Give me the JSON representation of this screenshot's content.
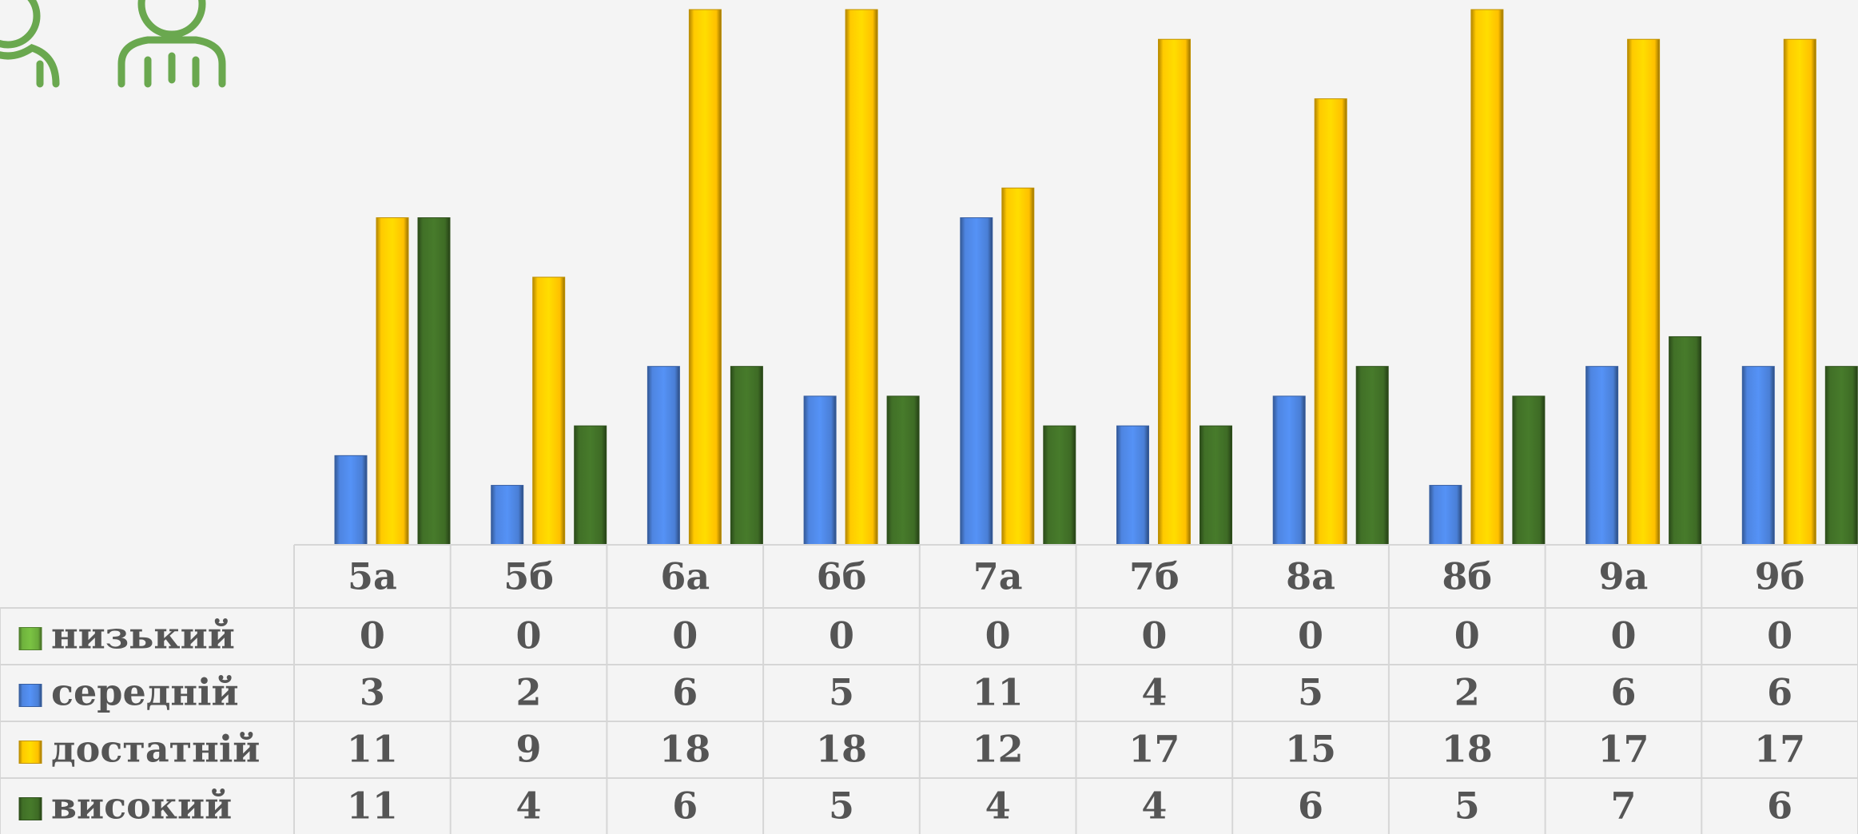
{
  "chart_data": {
    "type": "bar",
    "categories": [
      "5а",
      "5б",
      "6а",
      "6б",
      "7а",
      "7б",
      "8а",
      "8б",
      "9а",
      "9б"
    ],
    "series": [
      {
        "name": "низький",
        "color": "#6aaa3a",
        "values": [
          0,
          0,
          0,
          0,
          0,
          0,
          0,
          0,
          0,
          0
        ]
      },
      {
        "name": "середній",
        "color": "#4a7fd6",
        "values": [
          3,
          2,
          6,
          5,
          11,
          4,
          5,
          2,
          6,
          6
        ]
      },
      {
        "name": "достатній",
        "color": "#ffc000",
        "values": [
          11,
          9,
          18,
          18,
          12,
          17,
          15,
          18,
          17,
          17
        ]
      },
      {
        "name": "високий",
        "color": "#3e6b25",
        "values": [
          11,
          4,
          6,
          5,
          4,
          4,
          6,
          5,
          7,
          6
        ]
      }
    ],
    "ylim": [
      0,
      18
    ]
  }
}
